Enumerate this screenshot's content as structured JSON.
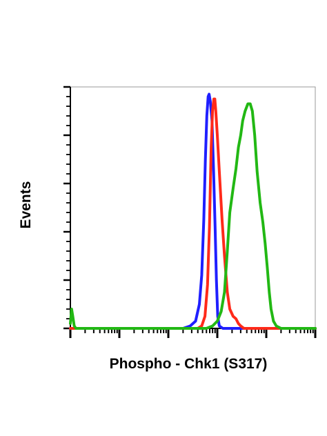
{
  "chart_data": {
    "type": "line",
    "title": "",
    "xlabel": "Phospho - Chk1 (S317)",
    "ylabel": "Events",
    "x_scale": "log",
    "xlim": [
      1,
      100000
    ],
    "ylim": [
      0,
      100
    ],
    "grid": false,
    "legend": "none",
    "series": [
      {
        "color": "#1f1fff",
        "values": [
          [
            1,
            0
          ],
          [
            200,
            0
          ],
          [
            280,
            1
          ],
          [
            360,
            3
          ],
          [
            430,
            10
          ],
          [
            480,
            22
          ],
          [
            530,
            45
          ],
          [
            570,
            70
          ],
          [
            610,
            88
          ],
          [
            650,
            96
          ],
          [
            680,
            97
          ],
          [
            720,
            94
          ],
          [
            780,
            86
          ],
          [
            840,
            65
          ],
          [
            900,
            42
          ],
          [
            960,
            20
          ],
          [
            1020,
            5
          ],
          [
            1100,
            1
          ],
          [
            1300,
            0
          ],
          [
            100000,
            0
          ]
        ]
      },
      {
        "color": "#ff2a1a",
        "values": [
          [
            1,
            0
          ],
          [
            400,
            0
          ],
          [
            480,
            1
          ],
          [
            560,
            5
          ],
          [
            630,
            18
          ],
          [
            690,
            42
          ],
          [
            750,
            75
          ],
          [
            800,
            90
          ],
          [
            850,
            95
          ],
          [
            890,
            95
          ],
          [
            930,
            90
          ],
          [
            1000,
            80
          ],
          [
            1100,
            65
          ],
          [
            1250,
            45
          ],
          [
            1400,
            30
          ],
          [
            1600,
            15
          ],
          [
            1800,
            8
          ],
          [
            2100,
            5
          ],
          [
            2400,
            4
          ],
          [
            2700,
            2
          ],
          [
            3000,
            1
          ],
          [
            3500,
            0
          ],
          [
            5000,
            0
          ],
          [
            100000,
            0
          ]
        ]
      },
      {
        "color": "#22b814",
        "values": [
          [
            1,
            2
          ],
          [
            1.06,
            8
          ],
          [
            1.12,
            5
          ],
          [
            1.2,
            1
          ],
          [
            1.3,
            0
          ],
          [
            600,
            0
          ],
          [
            800,
            1
          ],
          [
            1000,
            3
          ],
          [
            1200,
            7
          ],
          [
            1400,
            15
          ],
          [
            1600,
            32
          ],
          [
            1800,
            48
          ],
          [
            2100,
            58
          ],
          [
            2400,
            66
          ],
          [
            2700,
            75
          ],
          [
            3000,
            80
          ],
          [
            3300,
            86
          ],
          [
            3700,
            90
          ],
          [
            4200,
            93
          ],
          [
            4700,
            93
          ],
          [
            5200,
            90
          ],
          [
            5800,
            80
          ],
          [
            6500,
            65
          ],
          [
            7500,
            52
          ],
          [
            8500,
            44
          ],
          [
            9500,
            35
          ],
          [
            10500,
            25
          ],
          [
            11500,
            15
          ],
          [
            12500,
            8
          ],
          [
            14000,
            3
          ],
          [
            16000,
            1
          ],
          [
            20000,
            0
          ],
          [
            100000,
            0
          ]
        ]
      }
    ]
  }
}
